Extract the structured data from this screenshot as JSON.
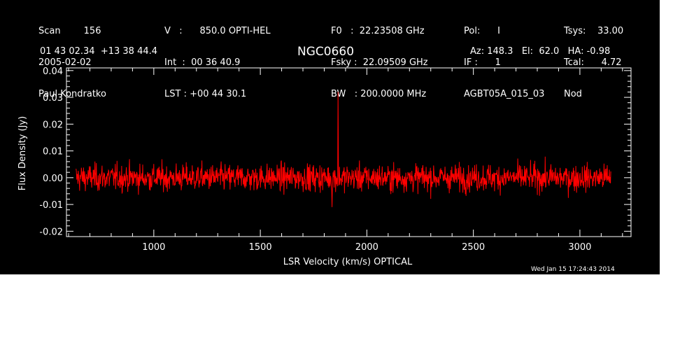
{
  "header": {
    "col1": [
      "Scan        156",
      "2005-02-02",
      "Paul Kondratko"
    ],
    "col2": [
      "V   :      850.0 OPTI-HEL",
      "Int  :  00 36 40.9",
      "LST : +00 44 30.1"
    ],
    "col3": [
      "F0   :  22.23508 GHz",
      "Fsky :  22.09509 GHz",
      "BW   : 200.0000 MHz"
    ],
    "col4": [
      "Pol:      I",
      "IF :      1",
      "AGBT05A_015_03"
    ],
    "col5": [
      "Tsys:    33.00",
      "Tcal:      4.72",
      "Nod"
    ],
    "coords": "01 43 02.34  +13 38 44.4",
    "source": "NGC0660",
    "azel": "Az: 148.3   El:  62.0   HA: -0.98"
  },
  "footer": {
    "timestamp": "Wed Jan 15 17:24:43 2014"
  },
  "colors": {
    "background": "#000000",
    "axes": "#ffffff",
    "spectrum": "#ff0000"
  },
  "chart_data": {
    "type": "line",
    "xlabel": "LSR Velocity (km/s) OPTICAL",
    "ylabel": "Flux Density (Jy)",
    "xlim": [
      590,
      3240
    ],
    "ylim": [
      -0.022,
      0.041
    ],
    "xticks": [
      1000,
      1500,
      2000,
      2500,
      3000
    ],
    "xtick_labels": [
      "1000",
      "1500",
      "2000",
      "2500",
      "3000"
    ],
    "yticks": [
      -0.02,
      -0.01,
      0.0,
      0.01,
      0.02,
      0.03,
      0.04
    ],
    "ytick_labels": [
      "-0.02",
      "-0.01",
      "0.00",
      "0.01",
      "0.02",
      "0.03",
      "0.04"
    ],
    "grid": false,
    "series": [
      {
        "color": "#ff0000",
        "x_range": [
          635,
          3145
        ],
        "noise_rms": 0.0025,
        "baseline": 0.0,
        "features": [
          {
            "x": 1865,
            "y": 0.032
          },
          {
            "x": 1836,
            "y": -0.011
          }
        ]
      }
    ]
  }
}
